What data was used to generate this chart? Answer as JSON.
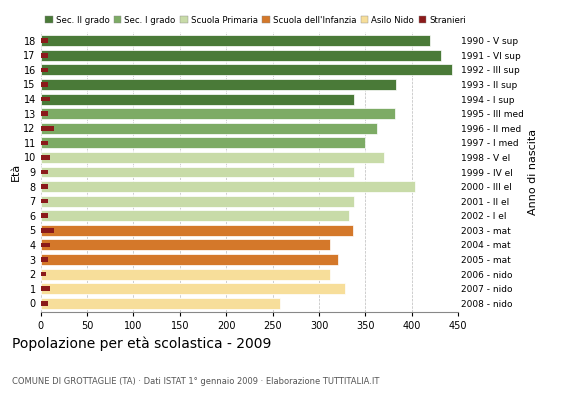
{
  "ages": [
    18,
    17,
    16,
    15,
    14,
    13,
    12,
    11,
    10,
    9,
    8,
    7,
    6,
    5,
    4,
    3,
    2,
    1,
    0
  ],
  "years": [
    "1990 - V sup",
    "1991 - VI sup",
    "1992 - III sup",
    "1993 - II sup",
    "1994 - I sup",
    "1995 - III med",
    "1996 - II med",
    "1997 - I med",
    "1998 - V el",
    "1999 - IV el",
    "2000 - III el",
    "2001 - II el",
    "2002 - I el",
    "2003 - mat",
    "2004 - mat",
    "2005 - mat",
    "2006 - nido",
    "2007 - nido",
    "2008 - nido"
  ],
  "values": [
    420,
    432,
    443,
    383,
    338,
    382,
    362,
    350,
    370,
    338,
    403,
    338,
    332,
    337,
    312,
    320,
    312,
    328,
    258
  ],
  "stranieri": [
    8,
    8,
    8,
    8,
    10,
    8,
    14,
    8,
    10,
    8,
    8,
    8,
    8,
    14,
    10,
    8,
    6,
    10,
    8
  ],
  "categories": {
    "Sec. II grado": {
      "ages": [
        14,
        15,
        16,
        17,
        18
      ],
      "color": "#4a7a38"
    },
    "Sec. I grado": {
      "ages": [
        11,
        12,
        13
      ],
      "color": "#7dab65"
    },
    "Scuola Primaria": {
      "ages": [
        6,
        7,
        8,
        9,
        10
      ],
      "color": "#c8dba8"
    },
    "Scuola dell'Infanzia": {
      "ages": [
        3,
        4,
        5
      ],
      "color": "#d4782a"
    },
    "Asilo Nido": {
      "ages": [
        0,
        1,
        2
      ],
      "color": "#f7de9a"
    }
  },
  "stranieri_color": "#8b1a1a",
  "bg_color": "#ffffff",
  "grid_color": "#bbbbbb",
  "title": "Popolazione per età scolastica - 2009",
  "subtitle": "COMUNE DI GROTTAGLIE (TA) · Dati ISTAT 1° gennaio 2009 · Elaborazione TUTTITALIA.IT",
  "ylabel_eta": "Età",
  "ylabel_anno": "Anno di nascita",
  "xlim": [
    0,
    450
  ],
  "xticks": [
    0,
    50,
    100,
    150,
    200,
    250,
    300,
    350,
    400,
    450
  ]
}
